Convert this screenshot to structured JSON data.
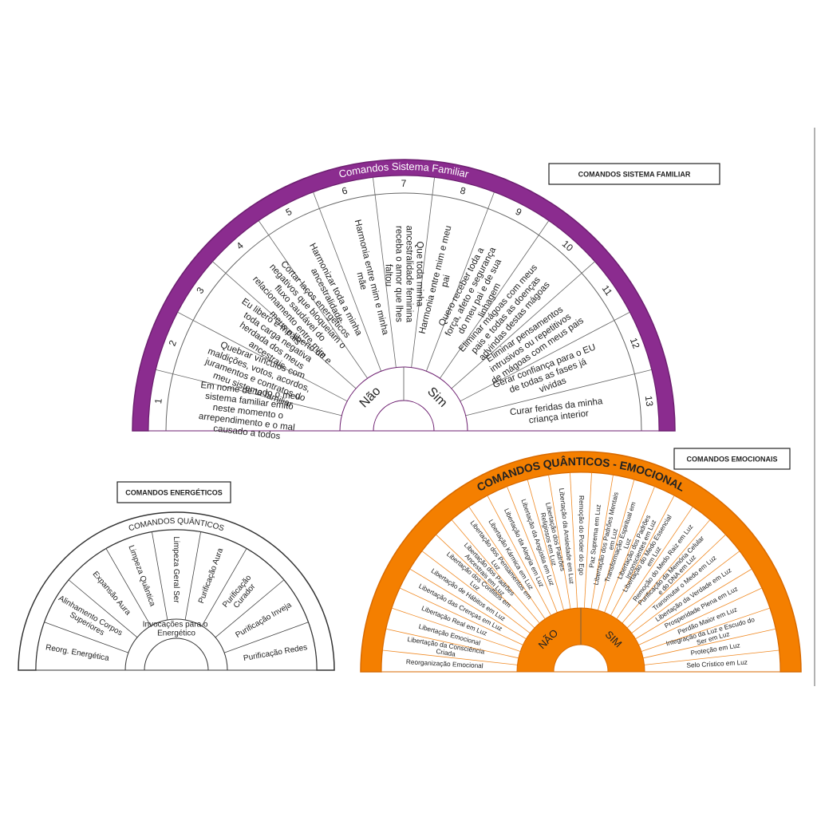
{
  "charts": [
    {
      "box_label": "COMANDOS SISTEMA FAMILIAR",
      "title": "Comandos Sistema Familiar",
      "hub_labels": [
        "Não",
        "Sim"
      ],
      "sectors": [
        {
          "number": 1,
          "text": "Em nome de todo o meu sistema familiar emito neste momento o arrependimento e o mal causado a todos"
        },
        {
          "number": 2,
          "text": "Quebrar vínculos com maldições, votos, acordos, juramentos e contratos do meu sistema familiar"
        },
        {
          "number": 3,
          "text": "Eu libero e me liberto de toda carga negativa herdada dos meus ancestrais"
        },
        {
          "number": 4,
          "text": "Cortar laços energéticos negativos que bloqueiam o fluxo saudável do relacionamento entre mim e meus pais"
        },
        {
          "number": 5,
          "text": "Harmonizar toda a minha ancestralidade"
        },
        {
          "number": 6,
          "text": "Harmonia entre mim e minha mãe"
        },
        {
          "number": 7,
          "text": "Que toda minha ancestralidade feminina receba o amor que lhes faltou"
        },
        {
          "number": 8,
          "text": "Harmonia entre mim e meu pai"
        },
        {
          "number": 9,
          "text": "Quero receber toda a força, afeto e segurança do meu pai e de sua linhagem"
        },
        {
          "number": 10,
          "text": "Eliminar mágoas com meus pais e todas as doenças advindas destas mágoas"
        },
        {
          "number": 11,
          "text": "Eliminar pensamentos intrusivos ou repetitivos de mágoas com meus pais"
        },
        {
          "number": 12,
          "text": "Gerar confiança para o EU de todas as fases já vividas"
        },
        {
          "number": 13,
          "text": "Curar feridas da minha criança interior"
        }
      ]
    },
    {
      "box_label": "COMANDOS ENERGÉTICOS",
      "title": "COMANDOS QUÂNTICOS",
      "hub_label": "Invocações para o Energético",
      "sectors": [
        {
          "text": "Reorg. Energética"
        },
        {
          "text": "Alinhamento Corpos Superiores"
        },
        {
          "text": "Expansão Aura"
        },
        {
          "text": "Limpeza Quântica"
        },
        {
          "text": "Limpeza Geral Ser"
        },
        {
          "text": "Purificação Aura"
        },
        {
          "text": "Purificação Curador"
        },
        {
          "text": "Purificação Inveja"
        },
        {
          "text": "Purificação Redes"
        }
      ]
    },
    {
      "box_label": "COMANDOS EMOCIONAIS",
      "title": "COMANDOS QUÂNTICOS - EMOCIONAL",
      "hub_labels": [
        "NÃO",
        "SIM"
      ],
      "sectors": [
        {
          "text": "Reorganização Emocional"
        },
        {
          "text": "Libertação da Consciência Criada"
        },
        {
          "text": "Libertação Emocional"
        },
        {
          "text": "Libertação Real em Luz"
        },
        {
          "text": "Libertação das Crenças em Luz"
        },
        {
          "text": "Libertação de Hábitos em Luz"
        },
        {
          "text": "Libertação dos Conflitos em Luz"
        },
        {
          "text": "Libertação dos Padrões Ancestrais em Luz"
        },
        {
          "text": "Libertação dos Pensamentos em Luz"
        },
        {
          "text": "Libertação Kármica em Luz"
        },
        {
          "text": "Libertação da Alegria em Luz"
        },
        {
          "text": "Libertação da Angústia em Luz"
        },
        {
          "text": "Libertação dos Padrões Religiosos em Luz"
        },
        {
          "text": "Libertação da Ansiedade em Luz"
        },
        {
          "text": "Remoção do Poder do Ego"
        },
        {
          "text": "Paz Suprema em Luz"
        },
        {
          "text": "Libertação dos Padrões Mentais em Luz"
        },
        {
          "text": "Transformação Espiritual em Luz"
        },
        {
          "text": "Libertação dos Padrões Inconscientes em Luz"
        },
        {
          "text": "Libertação do Medo Essencial em Luz"
        },
        {
          "text": "Remoção do Medo Raiz em Luz"
        },
        {
          "text": "Purificação da Memória Celular e do DNA em Luz"
        },
        {
          "text": "Transmutar o Medo em Luz"
        },
        {
          "text": "Libertação da Verdade em Luz"
        },
        {
          "text": "Prosperidade Plena em Luz"
        },
        {
          "text": "Perdão Maior em Luz"
        },
        {
          "text": "Integração da Luz e Escudo do Ser em Luz"
        },
        {
          "text": "Proteção em Luz"
        },
        {
          "text": "Selo Crístico em Luz"
        }
      ]
    }
  ]
}
